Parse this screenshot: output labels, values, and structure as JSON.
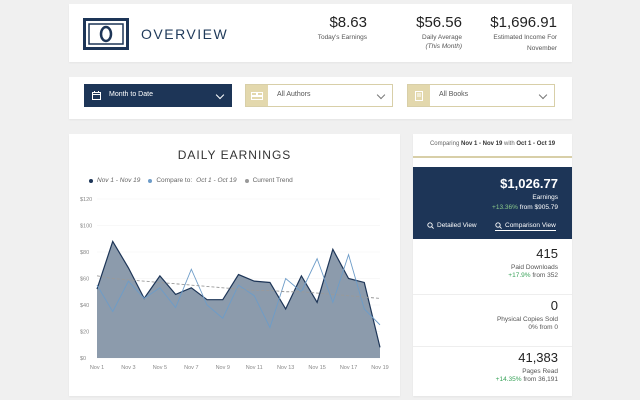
{
  "header": {
    "title": "OVERVIEW",
    "stats": {
      "today": {
        "value": "$8.63",
        "label": "Today's Earnings"
      },
      "average": {
        "value": "$56.56",
        "label": "Daily Average",
        "sub": "(This Month)"
      },
      "income": {
        "value": "$1,696.91",
        "label": "Estimated Income For",
        "sub": "November"
      }
    }
  },
  "filters": {
    "date": "Month to Date",
    "authors": "All Authors",
    "books": "All Books"
  },
  "chart_title": "DAILY EARNINGS",
  "legend": {
    "current": "Nov 1 - Nov 19",
    "compare_prefix": "Compare to:",
    "compare_range": "Oct 1 - Oct 19",
    "trend": "Current Trend"
  },
  "colors": {
    "navy": "#1d3557",
    "area": "#7f8fa0",
    "compare": "#6d9cc8",
    "trend": "#999999",
    "gold": "#d8cfa8",
    "green": "#3aa35a"
  },
  "chart_data": {
    "type": "area",
    "x": [
      "Nov 1",
      "Nov 2",
      "Nov 3",
      "Nov 4",
      "Nov 5",
      "Nov 6",
      "Nov 7",
      "Nov 8",
      "Nov 9",
      "Nov 10",
      "Nov 11",
      "Nov 12",
      "Nov 13",
      "Nov 14",
      "Nov 15",
      "Nov 16",
      "Nov 17",
      "Nov 18",
      "Nov 19"
    ],
    "x_tick_labels": [
      "Nov 1",
      "Nov 3",
      "Nov 5",
      "Nov 7",
      "Nov 9",
      "Nov 11",
      "Nov 13",
      "Nov 15",
      "Nov 17",
      "Nov 19"
    ],
    "y_ticks": [
      "$0",
      "$20",
      "$40",
      "$60",
      "$80",
      "$100",
      "$120"
    ],
    "ylim": [
      0,
      120
    ],
    "series": [
      {
        "name": "Nov 1 - Nov 19",
        "style": "area",
        "values": [
          52,
          88,
          68,
          45,
          62,
          48,
          53,
          44,
          44,
          63,
          58,
          57,
          37,
          62,
          42,
          82,
          60,
          57,
          8
        ]
      },
      {
        "name": "Compare to: Oct 1 - Oct 19",
        "style": "line",
        "values": [
          55,
          35,
          58,
          45,
          53,
          38,
          67,
          40,
          30,
          55,
          47,
          23,
          60,
          50,
          75,
          42,
          78,
          37,
          25
        ]
      },
      {
        "name": "Current Trend",
        "style": "dashed",
        "values": [
          62,
          60,
          59,
          58,
          57,
          56,
          55,
          54,
          53,
          52,
          51,
          51,
          50,
          50,
          49,
          48,
          47,
          46,
          45
        ]
      }
    ]
  },
  "comparison": {
    "prefix": "Comparing",
    "current": "Nov 1 - Nov 19",
    "with": "with",
    "previous": "Oct 1 - Oct 19"
  },
  "earnings": {
    "value": "$1,026.77",
    "label": "Earnings",
    "pct": "+13.36%",
    "from": "from $905.79",
    "detailed_label": "Detailed View",
    "comparison_label": "Comparison View"
  },
  "metrics": {
    "downloads": {
      "value": "415",
      "label": "Paid Downloads",
      "pct": "+17.9%",
      "from": "from 352"
    },
    "physical": {
      "value": "0",
      "label": "Physical Copies Sold",
      "pct": "0%",
      "from": "from 0"
    },
    "pages": {
      "value": "41,383",
      "label": "Pages Read",
      "pct": "+14.35%",
      "from": "from 36,191"
    }
  }
}
